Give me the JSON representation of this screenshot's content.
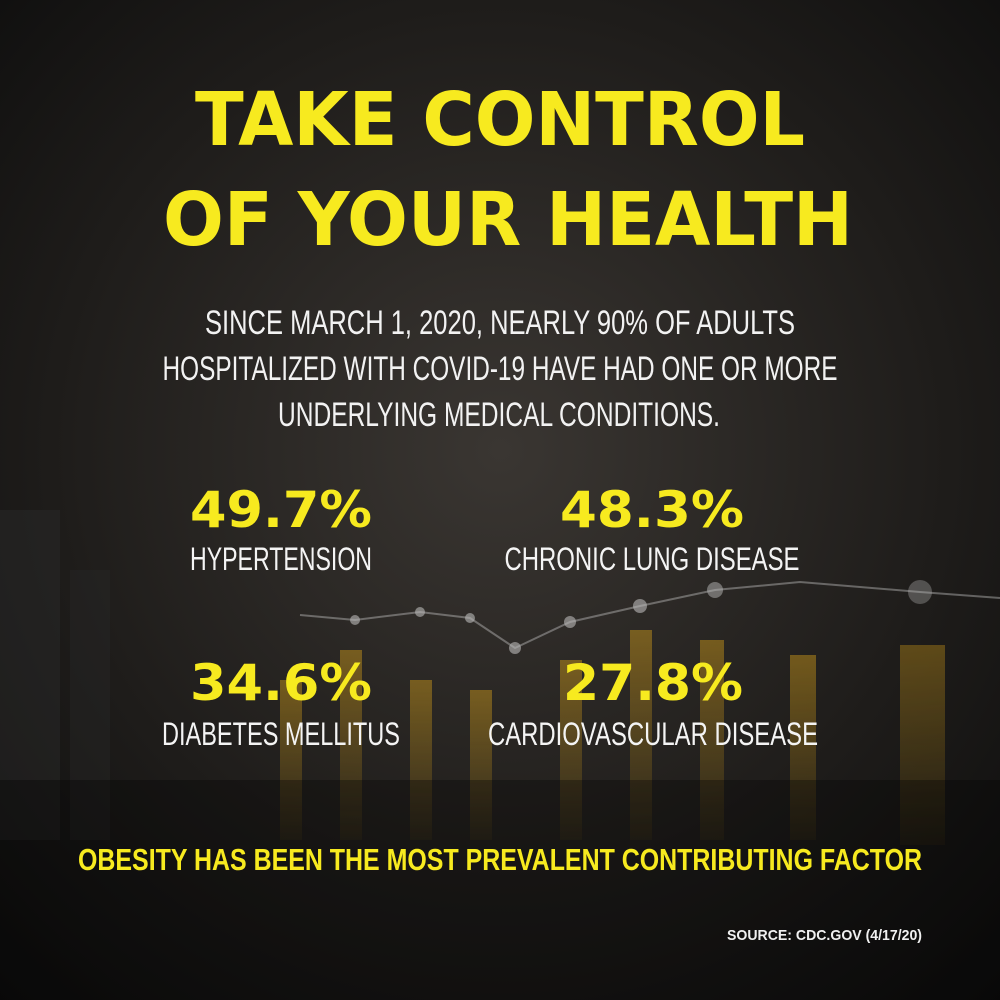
{
  "title": [
    "TAKE CONTROL",
    "OF YOUR HEALTH"
  ],
  "subtitle": [
    "SINCE MARCH 1, 2020, NEARLY 90% OF ADULTS",
    "HOSPITALIZED WITH COVID-19 HAVE HAD ONE OR MORE",
    "UNDERLYING MEDICAL CONDITIONS."
  ],
  "stats": [
    {
      "value": "49.7%",
      "label": "HYPERTENSION"
    },
    {
      "value": "48.3%",
      "label": "CHRONIC LUNG DISEASE"
    },
    {
      "value": "34.6%",
      "label": "DIABETES MELLITUS"
    },
    {
      "value": "27.8%",
      "label": "CARDIOVASCULAR DISEASE"
    }
  ],
  "footer": "OBESITY HAS BEEN THE MOST PREVALENT CONTRIBUTING FACTOR",
  "source": "SOURCE: CDC.GOV (4/17/20)"
}
